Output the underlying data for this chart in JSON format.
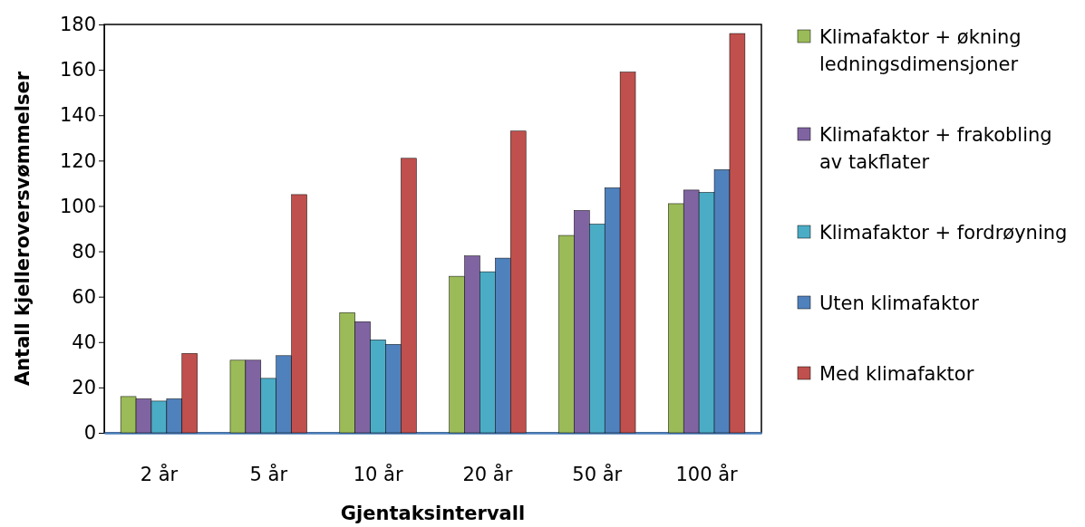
{
  "chart_data": {
    "type": "bar",
    "xlabel": "Gjentaksintervall",
    "ylabel": "Antall kjelleroversvømmelser",
    "categories": [
      "2 år",
      "5 år",
      "10 år",
      "20 år",
      "50 år",
      "100 år"
    ],
    "series": [
      {
        "name": "Klimafaktor + økning ledningsdimensjoner",
        "color": "#9bbb59",
        "values": [
          16,
          32,
          53,
          69,
          87,
          101
        ]
      },
      {
        "name": "Klimafaktor + frakobling av takflater",
        "color": "#8064a2",
        "values": [
          15,
          32,
          49,
          78,
          98,
          107
        ]
      },
      {
        "name": "Klimafaktor + fordrøyning",
        "color": "#4bacc6",
        "values": [
          14,
          24,
          41,
          71,
          92,
          106
        ]
      },
      {
        "name": "Uten klimafaktor",
        "color": "#4f81bd",
        "values": [
          15,
          34,
          39,
          77,
          108,
          116
        ]
      },
      {
        "name": "Med klimafaktor",
        "color": "#c0504d",
        "values": [
          35,
          105,
          121,
          133,
          159,
          176
        ]
      }
    ],
    "ylim": [
      0,
      180
    ],
    "yticks": [
      0,
      20,
      40,
      60,
      80,
      100,
      120,
      140,
      160,
      180
    ],
    "grid": false,
    "legend": "right"
  }
}
